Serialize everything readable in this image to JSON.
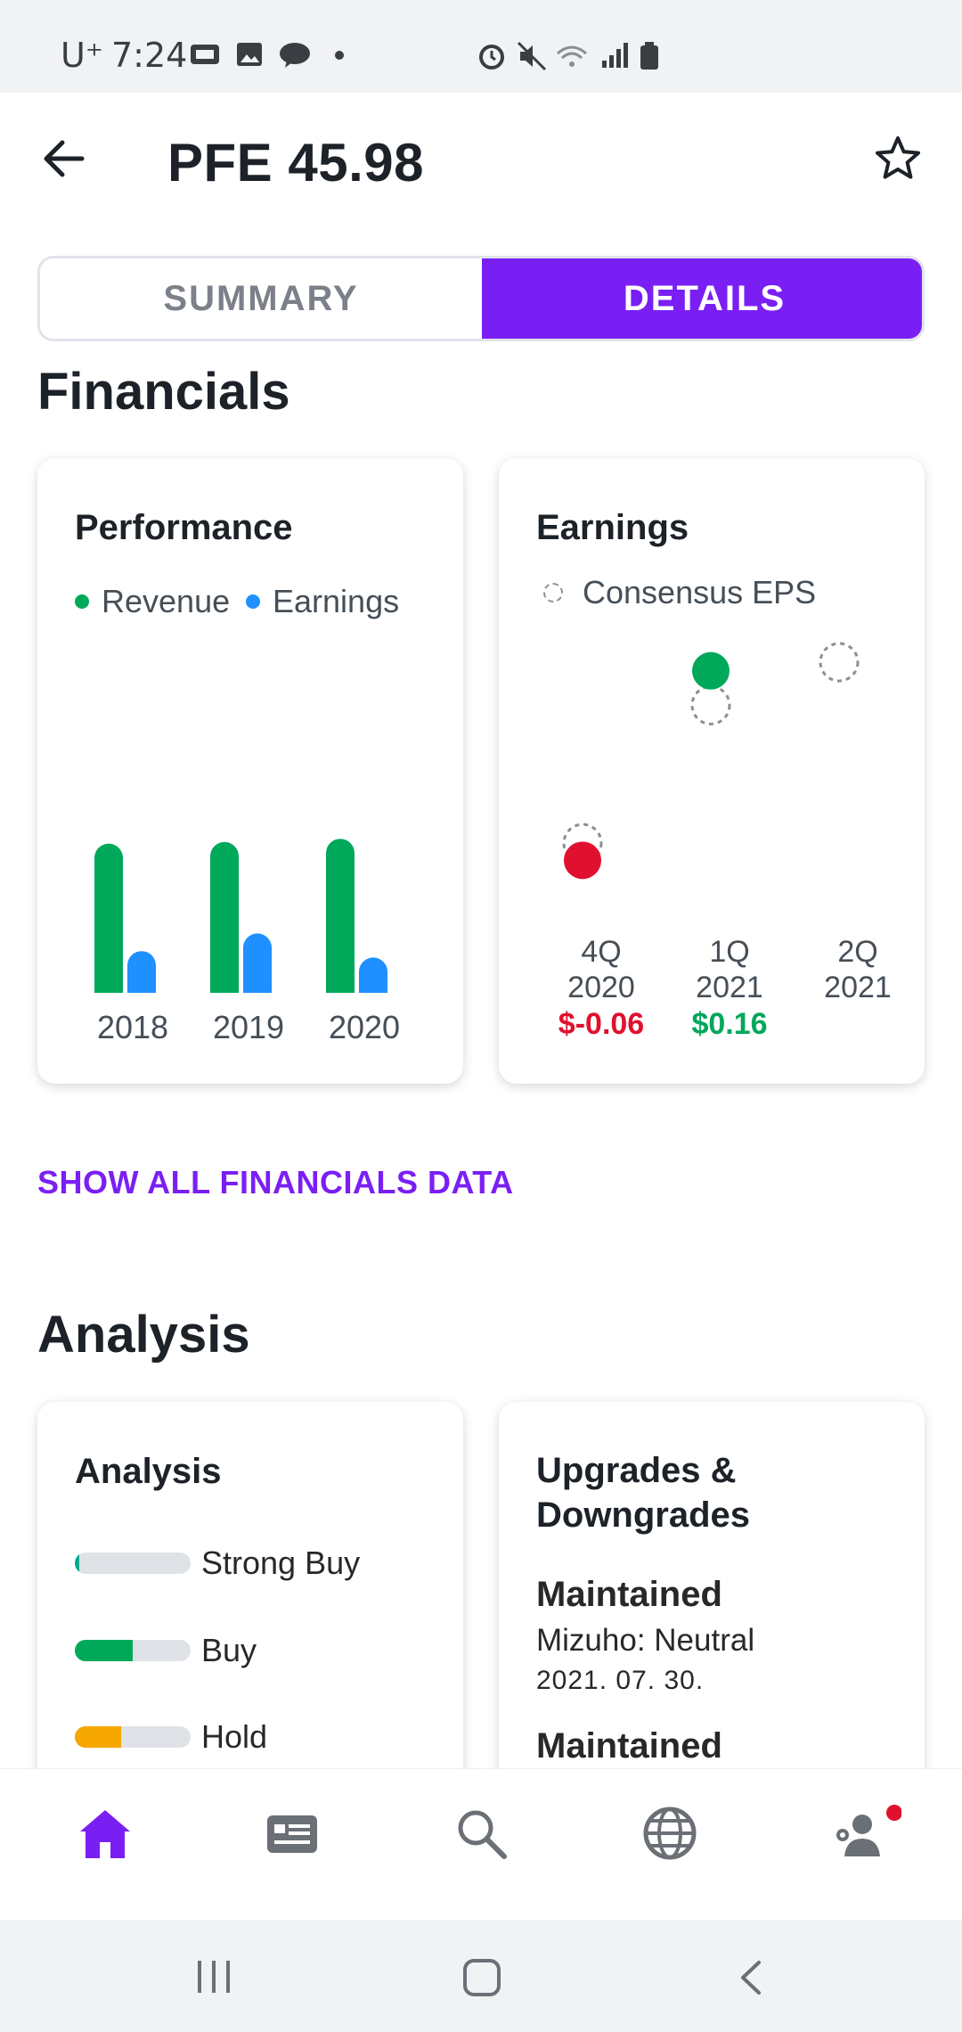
{
  "status_bar": {
    "carrier": "U⁺",
    "time": "7:24"
  },
  "header": {
    "title": "PFE 45.98"
  },
  "tabs": {
    "summary": "SUMMARY",
    "details": "DETAILS",
    "active": "details"
  },
  "financials": {
    "heading": "Financials",
    "performance": {
      "title": "Performance",
      "legend": [
        "Revenue",
        "Earnings"
      ],
      "colors": {
        "revenue": "#00a85a",
        "earnings": "#1e90ff"
      }
    },
    "earnings": {
      "title": "Earnings",
      "legend": "Consensus EPS",
      "quarters": [
        {
          "q": "4Q",
          "year": "2020",
          "eps": "$-0.06",
          "eps_color": "#e0102e"
        },
        {
          "q": "1Q",
          "year": "2021",
          "eps": "$0.16",
          "eps_color": "#00a85a"
        },
        {
          "q": "2Q",
          "year": "2021",
          "eps": "",
          "eps_color": "#00a85a"
        }
      ]
    },
    "show_all": "SHOW ALL FINANCIALS DATA"
  },
  "chart_data": [
    {
      "type": "bar",
      "title": "Performance",
      "categories": [
        "2018",
        "2019",
        "2020"
      ],
      "series": [
        {
          "name": "Revenue",
          "values": [
            0.93,
            0.94,
            0.96
          ]
        },
        {
          "name": "Earnings",
          "values": [
            0.26,
            0.37,
            0.22
          ]
        }
      ],
      "ylim": [
        0,
        1
      ],
      "legend": "top-left"
    },
    {
      "type": "scatter",
      "title": "Earnings",
      "categories": [
        "4Q 2020",
        "1Q 2021",
        "2Q 2021"
      ],
      "series": [
        {
          "name": "Consensus EPS",
          "values": [
            -0.04,
            0.12,
            0.17
          ]
        },
        {
          "name": "",
          "values": [
            -0.06,
            0.16,
            null
          ]
        }
      ],
      "ylim": [
        -0.1,
        0.2
      ]
    }
  ],
  "analysis": {
    "heading": "Analysis",
    "card_title": "Analysis",
    "ratings": [
      {
        "label": "Strong Buy",
        "fill": 0.04,
        "color": "#00a88f"
      },
      {
        "label": "Buy",
        "fill": 0.5,
        "color": "#00a85a"
      },
      {
        "label": "Hold",
        "fill": 0.4,
        "color": "#f5a700"
      }
    ]
  },
  "upgrades": {
    "title_line1": "Upgrades &",
    "title_line2": "Downgrades",
    "items": [
      {
        "action": "Maintained",
        "firm": "Mizuho: Neutral",
        "date": "2021. 07. 30."
      },
      {
        "action": "Maintained"
      }
    ]
  },
  "nav": {
    "active": "home"
  }
}
